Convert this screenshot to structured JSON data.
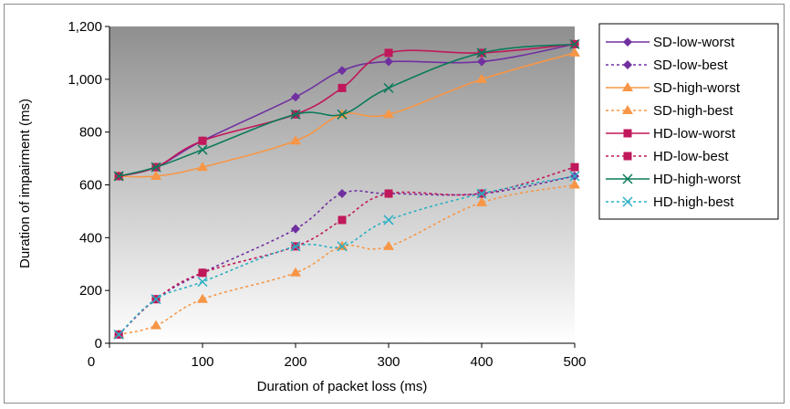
{
  "chart_data": {
    "type": "line",
    "title": "",
    "xlabel": "Duration of packet loss (ms)",
    "ylabel": "Duration of impairment (ms)",
    "xlim": [
      0,
      500
    ],
    "ylim": [
      0,
      1200
    ],
    "xticks": [
      0,
      100,
      200,
      300,
      400,
      500
    ],
    "yticks": [
      0,
      200,
      400,
      600,
      800,
      1000,
      1200
    ],
    "xtick_labels": [
      "0",
      "100",
      "200",
      "300",
      "400",
      "500"
    ],
    "ytick_labels": [
      "0",
      "200",
      "400",
      "600",
      "800",
      "1,000",
      "1,200"
    ],
    "grid": false,
    "legend_position": "right",
    "background": "gradient-gray",
    "series": [
      {
        "name": "SD-low-worst",
        "color": "#7030a0",
        "dash": false,
        "marker": "diamond",
        "x": [
          10,
          50,
          100,
          200,
          250,
          300,
          400,
          500
        ],
        "y": [
          633,
          667,
          767,
          933,
          1033,
          1067,
          1067,
          1133
        ]
      },
      {
        "name": "SD-low-best",
        "color": "#7030a0",
        "dash": true,
        "marker": "diamond",
        "x": [
          10,
          50,
          100,
          200,
          250,
          300,
          400,
          500
        ],
        "y": [
          33,
          167,
          267,
          433,
          567,
          567,
          567,
          633
        ]
      },
      {
        "name": "SD-high-worst",
        "color": "#f79646",
        "dash": false,
        "marker": "triangle",
        "x": [
          10,
          50,
          100,
          200,
          250,
          300,
          400,
          500
        ],
        "y": [
          633,
          633,
          667,
          767,
          867,
          867,
          1000,
          1100
        ]
      },
      {
        "name": "SD-high-best",
        "color": "#f79646",
        "dash": true,
        "marker": "triangle",
        "x": [
          10,
          50,
          100,
          200,
          250,
          300,
          400,
          500
        ],
        "y": [
          33,
          67,
          167,
          267,
          367,
          367,
          533,
          600
        ]
      },
      {
        "name": "HD-low-worst",
        "color": "#c0185a",
        "dash": false,
        "marker": "square",
        "x": [
          10,
          50,
          100,
          200,
          250,
          300,
          400,
          500
        ],
        "y": [
          633,
          667,
          767,
          867,
          967,
          1100,
          1100,
          1133
        ]
      },
      {
        "name": "HD-low-best",
        "color": "#c0185a",
        "dash": true,
        "marker": "square",
        "x": [
          10,
          50,
          100,
          200,
          250,
          300,
          400,
          500
        ],
        "y": [
          33,
          167,
          267,
          367,
          467,
          567,
          567,
          667
        ]
      },
      {
        "name": "HD-high-worst",
        "color": "#0b7a5a",
        "dash": false,
        "marker": "x",
        "x": [
          10,
          50,
          100,
          200,
          250,
          300,
          400,
          500
        ],
        "y": [
          633,
          667,
          733,
          867,
          867,
          967,
          1100,
          1133
        ]
      },
      {
        "name": "HD-high-best",
        "color": "#2ab0c4",
        "dash": true,
        "marker": "x",
        "x": [
          10,
          50,
          100,
          200,
          250,
          300,
          400,
          500
        ],
        "y": [
          33,
          167,
          233,
          367,
          367,
          467,
          567,
          633
        ]
      }
    ]
  }
}
